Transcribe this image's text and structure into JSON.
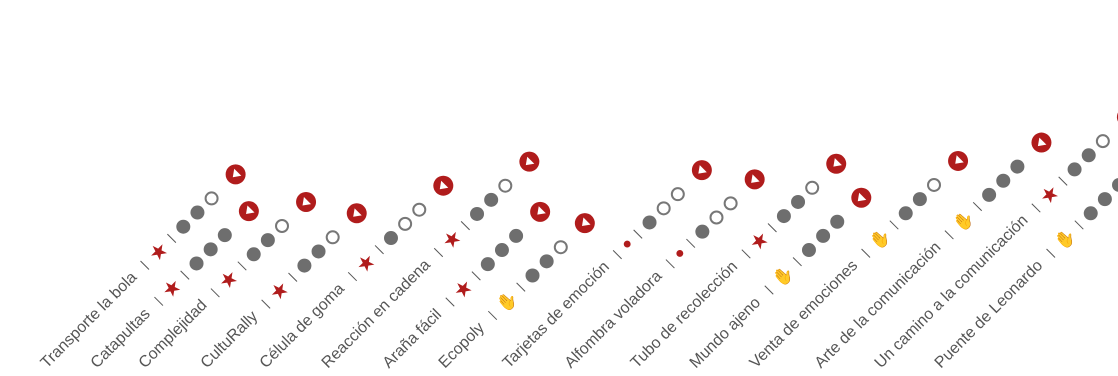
{
  "separator": "|",
  "items": [
    {
      "name": "Transporte la bola",
      "icon": "star-icon",
      "difficulty": 2
    },
    {
      "name": "Catapultas",
      "icon": "star-icon",
      "difficulty": 3
    },
    {
      "name": "Complejidad",
      "icon": "star-icon",
      "difficulty": 2
    },
    {
      "name": "CultuRally",
      "icon": "star-icon",
      "difficulty": 2
    },
    {
      "name": "Célula de goma",
      "icon": "star-icon",
      "difficulty": 1
    },
    {
      "name": "Reacción en cadena",
      "icon": "star-icon",
      "difficulty": 2
    },
    {
      "name": "Araña fácil",
      "icon": "star-icon",
      "difficulty": 3
    },
    {
      "name": "Ecopoly",
      "icon": "hands-icon",
      "difficulty": 2
    },
    {
      "name": "Tarjetas de emoción",
      "icon": "bird-icon",
      "difficulty": 1
    },
    {
      "name": "Alfombra voladora",
      "icon": "bird-icon",
      "difficulty": 1
    },
    {
      "name": "Tubo de recolección",
      "icon": "star-icon",
      "difficulty": 2
    },
    {
      "name": "Mundo ajeno",
      "icon": "hands-icon",
      "difficulty": 3
    },
    {
      "name": "Venta de emociones",
      "icon": "hands-icon",
      "difficulty": 2
    },
    {
      "name": "Arte de la comunicación",
      "icon": "hands-icon",
      "difficulty": 3
    },
    {
      "name": "Un camino a la comunicación",
      "icon": "star-icon",
      "difficulty": 2
    },
    {
      "name": "Puente de Leonardo",
      "icon": "hands-icon",
      "difficulty": 3
    }
  ],
  "colors": {
    "accent": "#b01c1c",
    "text": "#555555",
    "dot": "#6e6e6e"
  }
}
